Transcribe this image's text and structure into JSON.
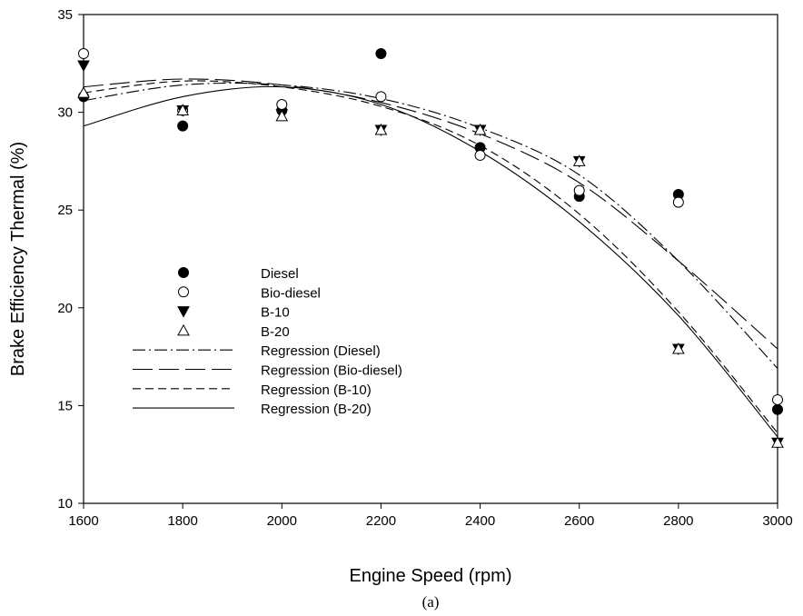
{
  "chart_data": {
    "type": "scatter",
    "xlabel": "Engine Speed (rpm)",
    "ylabel": "Brake Efficiency Thermal (%)",
    "caption": "(a)",
    "xlim": [
      1600,
      3000
    ],
    "ylim": [
      10,
      35
    ],
    "xticks": [
      "1600",
      "1800",
      "2000",
      "2200",
      "2400",
      "2600",
      "2800",
      "3000"
    ],
    "yticks": [
      "10",
      "15",
      "20",
      "25",
      "30",
      "35"
    ],
    "grid": false,
    "legend_position": "center-left",
    "x": [
      1600,
      1800,
      2000,
      2200,
      2400,
      2600,
      2800,
      3000
    ],
    "series": [
      {
        "name": "Diesel",
        "marker": "filled-circle",
        "values": [
          30.8,
          29.3,
          30.1,
          33.0,
          28.2,
          25.7,
          25.8,
          14.8
        ]
      },
      {
        "name": "Bio-diesel",
        "marker": "open-circle",
        "values": [
          33.0,
          30.1,
          30.4,
          30.8,
          27.8,
          26.0,
          25.4,
          15.3
        ]
      },
      {
        "name": "B-10",
        "marker": "filled-triangle-down",
        "values": [
          32.4,
          30.1,
          29.9,
          29.1,
          29.1,
          27.5,
          17.9,
          13.1
        ]
      },
      {
        "name": "B-20",
        "marker": "open-triangle-up",
        "values": [
          31.0,
          30.1,
          29.8,
          29.1,
          29.1,
          27.5,
          17.9,
          13.1
        ]
      }
    ],
    "regression": [
      {
        "name": "Regression (Diesel)",
        "dash": "dash-dot",
        "x": [
          1600,
          1800,
          2000,
          2200,
          2400,
          2600,
          2800,
          3000
        ],
        "values": [
          30.6,
          31.4,
          31.4,
          30.7,
          29.2,
          26.8,
          22.4,
          16.9
        ]
      },
      {
        "name": "Regression (Bio-diesel)",
        "dash": "long-dash",
        "x": [
          1600,
          1800,
          2000,
          2200,
          2400,
          2600,
          2800,
          3000
        ],
        "values": [
          31.3,
          31.7,
          31.4,
          30.5,
          28.9,
          26.4,
          22.4,
          17.9
        ]
      },
      {
        "name": "Regression (B-10)",
        "dash": "short-dash",
        "x": [
          1600,
          1800,
          2000,
          2200,
          2400,
          2600,
          2800,
          3000
        ],
        "values": [
          31.0,
          31.6,
          31.3,
          30.3,
          28.3,
          24.8,
          19.8,
          13.6
        ]
      },
      {
        "name": "Regression (B-20)",
        "dash": "solid",
        "x": [
          1600,
          1800,
          2000,
          2200,
          2400,
          2600,
          2800,
          3000
        ],
        "values": [
          29.3,
          30.8,
          31.3,
          30.4,
          28.0,
          24.4,
          19.6,
          13.4
        ]
      }
    ]
  }
}
